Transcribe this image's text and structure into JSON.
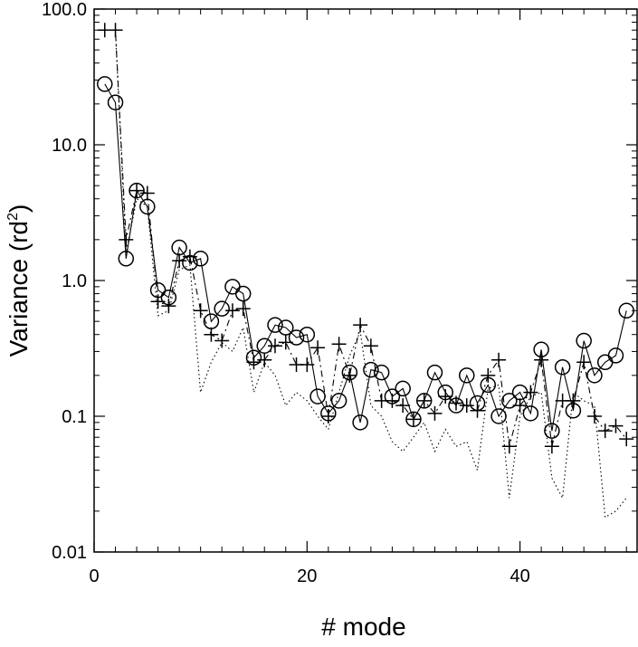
{
  "chart_data": {
    "type": "line",
    "title": "",
    "xlabel": "# mode",
    "ylabel": {
      "prefix": "Variance (rd",
      "sup": "2",
      "suffix": ")"
    },
    "xlim": [
      0,
      51
    ],
    "ylim": [
      0.01,
      100
    ],
    "yscale": "log",
    "x_ticks": [
      {
        "value": 0,
        "label": "0"
      },
      {
        "value": 20,
        "label": "20"
      },
      {
        "value": 40,
        "label": "40"
      }
    ],
    "y_ticks": [
      {
        "value": 0.01,
        "label": "0.01"
      },
      {
        "value": 0.1,
        "label": "0.1"
      },
      {
        "value": 1,
        "label": "1.0"
      },
      {
        "value": 10,
        "label": "10.0"
      },
      {
        "value": 100,
        "label": "100.0"
      }
    ],
    "x": [
      1,
      2,
      3,
      4,
      5,
      6,
      7,
      8,
      9,
      10,
      11,
      12,
      13,
      14,
      15,
      16,
      17,
      18,
      19,
      20,
      21,
      22,
      23,
      24,
      25,
      26,
      27,
      28,
      29,
      30,
      31,
      32,
      33,
      34,
      35,
      36,
      37,
      38,
      39,
      40,
      41,
      42,
      43,
      44,
      45,
      46,
      47,
      48,
      49,
      50
    ],
    "series": [
      {
        "line": "solid",
        "marker": "circle",
        "values": [
          28,
          20.5,
          1.45,
          4.6,
          3.5,
          0.85,
          0.75,
          1.75,
          1.35,
          1.45,
          0.5,
          0.62,
          0.9,
          0.8,
          0.27,
          0.33,
          0.47,
          0.45,
          0.38,
          0.4,
          0.14,
          0.105,
          0.13,
          0.21,
          0.09,
          0.22,
          0.21,
          0.14,
          0.16,
          0.095,
          0.13,
          0.21,
          0.15,
          0.12,
          0.2,
          0.125,
          0.17,
          0.1,
          0.13,
          0.15,
          0.105,
          0.31,
          0.078,
          0.23,
          0.11,
          0.36,
          0.2,
          0.25,
          0.28,
          0.6
        ]
      },
      {
        "line": "dashed",
        "marker": "plus",
        "values": [
          70,
          70,
          2.0,
          4.6,
          4.4,
          0.7,
          0.65,
          1.4,
          1.5,
          0.6,
          0.4,
          0.36,
          0.6,
          0.62,
          0.25,
          0.26,
          0.33,
          0.35,
          0.24,
          0.24,
          0.32,
          0.1,
          0.34,
          0.2,
          0.47,
          0.33,
          0.13,
          0.13,
          0.12,
          0.095,
          0.13,
          0.105,
          0.14,
          0.125,
          0.12,
          0.11,
          0.2,
          0.26,
          0.06,
          0.12,
          0.15,
          0.26,
          0.06,
          0.13,
          0.13,
          0.25,
          0.1,
          0.078,
          0.085,
          0.068
        ]
      },
      {
        "line": "dotted",
        "marker": "none",
        "values": [
          70,
          70,
          1.6,
          4.0,
          3.5,
          0.55,
          0.6,
          1.2,
          1.3,
          0.15,
          0.25,
          0.35,
          0.3,
          0.45,
          0.15,
          0.25,
          0.2,
          0.12,
          0.15,
          0.13,
          0.1,
          0.08,
          0.15,
          0.28,
          0.42,
          0.12,
          0.1,
          0.065,
          0.055,
          0.07,
          0.09,
          0.055,
          0.08,
          0.06,
          0.065,
          0.04,
          0.16,
          0.17,
          0.025,
          0.1,
          0.14,
          0.15,
          0.035,
          0.025,
          0.15,
          0.13,
          0.12,
          0.018,
          0.02,
          0.025
        ]
      }
    ]
  }
}
